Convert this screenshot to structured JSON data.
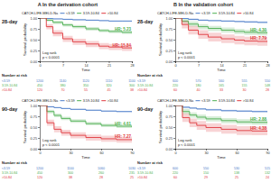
{
  "column_titles": [
    "A In the derivation cohort",
    "B In the validation cohort"
  ],
  "chart_data": [
    {
      "type": "step",
      "title": "28-day",
      "x_label": "Time",
      "y_label": "Survival probability",
      "legend": "top",
      "legend_title": "CATCH-LIFE-MELD-Na",
      "xlim": [
        0,
        28
      ],
      "xticks": [
        0,
        7,
        14,
        21,
        28
      ],
      "ylim": [
        0,
        1
      ],
      "yticks": [
        {
          "value": 0,
          "label": "0.00"
        },
        {
          "value": 0.25,
          "label": "0.25"
        },
        {
          "value": 0.5,
          "label": "0.50"
        },
        {
          "value": 0.75,
          "label": "0.75"
        },
        {
          "value": 1,
          "label": "1.00"
        }
      ],
      "x": [
        0,
        2,
        4,
        7,
        10,
        14,
        18,
        21,
        25,
        28
      ],
      "series": [
        {
          "name": "<3.59",
          "color": "#4a7cc8",
          "values": [
            1,
            0.99,
            0.98,
            0.97,
            0.96,
            0.95,
            0.94,
            0.93,
            0.93,
            0.92
          ],
          "lower": [
            1,
            0.98,
            0.97,
            0.955,
            0.945,
            0.935,
            0.925,
            0.915,
            0.915,
            0.905
          ],
          "upper": [
            1,
            1,
            0.99,
            0.985,
            0.975,
            0.965,
            0.955,
            0.945,
            0.945,
            0.935
          ]
        },
        {
          "name": "3.59-10.84",
          "color": "#4caf50",
          "annotation": "HR: 5.23",
          "values": [
            1,
            0.95,
            0.9,
            0.84,
            0.8,
            0.75,
            0.71,
            0.69,
            0.67,
            0.66
          ],
          "lower": [
            1,
            0.92,
            0.86,
            0.8,
            0.76,
            0.71,
            0.67,
            0.65,
            0.63,
            0.62
          ],
          "upper": [
            1,
            0.98,
            0.94,
            0.88,
            0.84,
            0.79,
            0.75,
            0.73,
            0.71,
            0.7
          ]
        },
        {
          "name": ">10.84",
          "color": "#e0393e",
          "annotation": "HR: 15.84",
          "values": [
            1,
            0.8,
            0.65,
            0.52,
            0.45,
            0.4,
            0.35,
            0.33,
            0.31,
            0.3
          ],
          "lower": [
            1,
            0.74,
            0.58,
            0.45,
            0.38,
            0.33,
            0.28,
            0.26,
            0.24,
            0.23
          ],
          "upper": [
            1,
            0.86,
            0.72,
            0.59,
            0.52,
            0.47,
            0.42,
            0.4,
            0.38,
            0.37
          ]
        }
      ],
      "annotations": [
        "Log rank",
        "p < 0.0001"
      ],
      "risk_table": {
        "title": "Number at risk",
        "rows": [
          [
            1200,
            1140,
            1120,
            1110,
            1100
          ],
          [
            450,
            380,
            350,
            320,
            300
          ],
          [
            120,
            70,
            55,
            45,
            38
          ]
        ]
      }
    },
    {
      "type": "step",
      "title": "28-day",
      "x_label": "Time",
      "y_label": "Survival probability",
      "legend": "top",
      "legend_title": "CATCH-LIFE-MELD-Na",
      "xlim": [
        0,
        28
      ],
      "xticks": [
        0,
        7,
        14,
        21,
        28
      ],
      "ylim": [
        0,
        1
      ],
      "yticks": [
        {
          "value": 0,
          "label": "0.00"
        },
        {
          "value": 0.25,
          "label": "0.25"
        },
        {
          "value": 0.5,
          "label": "0.50"
        },
        {
          "value": 0.75,
          "label": "0.75"
        },
        {
          "value": 1,
          "label": "1.00"
        }
      ],
      "x": [
        0,
        2,
        4,
        7,
        10,
        14,
        18,
        21,
        25,
        28
      ],
      "series": [
        {
          "name": "<3.59",
          "color": "#4a7cc8",
          "values": [
            1,
            0.99,
            0.97,
            0.95,
            0.94,
            0.93,
            0.92,
            0.91,
            0.9,
            0.9
          ],
          "lower": [
            1,
            0.98,
            0.95,
            0.93,
            0.92,
            0.91,
            0.9,
            0.89,
            0.88,
            0.88
          ],
          "upper": [
            1,
            1,
            0.99,
            0.97,
            0.96,
            0.95,
            0.94,
            0.93,
            0.92,
            0.92
          ]
        },
        {
          "name": "3.59-10.84",
          "color": "#4caf50",
          "annotation": "HR: 4.30",
          "values": [
            1,
            0.93,
            0.86,
            0.8,
            0.76,
            0.72,
            0.69,
            0.67,
            0.66,
            0.65
          ],
          "lower": [
            1,
            0.88,
            0.8,
            0.74,
            0.7,
            0.66,
            0.63,
            0.61,
            0.6,
            0.59
          ],
          "upper": [
            1,
            0.98,
            0.92,
            0.86,
            0.82,
            0.78,
            0.75,
            0.73,
            0.72,
            0.71
          ]
        },
        {
          "name": ">10.84",
          "color": "#e0393e",
          "annotation": "HR: 7.79",
          "values": [
            1,
            0.85,
            0.72,
            0.62,
            0.56,
            0.52,
            0.49,
            0.47,
            0.46,
            0.45
          ],
          "lower": [
            1,
            0.76,
            0.62,
            0.52,
            0.46,
            0.42,
            0.39,
            0.37,
            0.36,
            0.35
          ],
          "upper": [
            1,
            0.94,
            0.82,
            0.72,
            0.66,
            0.62,
            0.59,
            0.57,
            0.56,
            0.55
          ]
        }
      ],
      "annotations": [
        "Log rank",
        "p < 0.0001"
      ],
      "risk_table": {
        "title": "Number at risk",
        "rows": [
          [
            600,
            570,
            560,
            555,
            550
          ],
          [
            220,
            180,
            165,
            155,
            148
          ],
          [
            60,
            40,
            33,
            30,
            28
          ]
        ]
      }
    },
    {
      "type": "step",
      "title": "90-day",
      "x_label": "Time",
      "y_label": "Survival probability",
      "legend": "top",
      "legend_title": "CATCH-LIFE-MELD-Na",
      "xlim": [
        0,
        90
      ],
      "xticks": [
        0,
        30,
        60,
        90
      ],
      "ylim": [
        0,
        1
      ],
      "yticks": [
        {
          "value": 0,
          "label": "0.00"
        },
        {
          "value": 0.25,
          "label": "0.25"
        },
        {
          "value": 0.5,
          "label": "0.50"
        },
        {
          "value": 0.75,
          "label": "0.75"
        },
        {
          "value": 1,
          "label": "1.00"
        }
      ],
      "x": [
        0,
        7,
        14,
        21,
        30,
        45,
        60,
        75,
        90
      ],
      "series": [
        {
          "name": "<3.59",
          "color": "#4a7cc8",
          "values": [
            1,
            0.97,
            0.95,
            0.93,
            0.91,
            0.89,
            0.87,
            0.86,
            0.85
          ],
          "lower": [
            1,
            0.955,
            0.935,
            0.915,
            0.895,
            0.875,
            0.855,
            0.845,
            0.835
          ],
          "upper": [
            1,
            0.985,
            0.965,
            0.945,
            0.925,
            0.905,
            0.885,
            0.875,
            0.865
          ]
        },
        {
          "name": "3.59-10.84",
          "color": "#4caf50",
          "annotation": "HR: 4.61",
          "values": [
            1,
            0.86,
            0.77,
            0.7,
            0.64,
            0.58,
            0.54,
            0.52,
            0.5
          ],
          "lower": [
            1,
            0.82,
            0.73,
            0.66,
            0.6,
            0.54,
            0.5,
            0.48,
            0.46
          ],
          "upper": [
            1,
            0.9,
            0.81,
            0.74,
            0.68,
            0.62,
            0.58,
            0.56,
            0.54
          ]
        },
        {
          "name": ">10.84",
          "color": "#e0393e",
          "annotation": "HR: 7.27",
          "values": [
            1,
            0.6,
            0.45,
            0.37,
            0.31,
            0.26,
            0.23,
            0.21,
            0.2
          ],
          "lower": [
            1,
            0.53,
            0.38,
            0.3,
            0.24,
            0.19,
            0.16,
            0.14,
            0.13
          ],
          "upper": [
            1,
            0.67,
            0.52,
            0.44,
            0.38,
            0.33,
            0.3,
            0.28,
            0.27
          ]
        }
      ],
      "annotations": [
        "Log rank",
        "p < 0.0001"
      ],
      "risk_table": {
        "title": "Number at risk",
        "rows": [
          [
            1200,
            1100,
            1060,
            1030
          ],
          [
            450,
            300,
            260,
            235
          ],
          [
            120,
            38,
            28,
            25
          ]
        ]
      }
    },
    {
      "type": "step",
      "title": "90-day",
      "x_label": "Time",
      "y_label": "Survival probability",
      "legend": "top",
      "legend_title": "CATCH-LIFE-MELD-Na",
      "xlim": [
        0,
        90
      ],
      "xticks": [
        0,
        30,
        60,
        90
      ],
      "ylim": [
        0,
        1
      ],
      "yticks": [
        {
          "value": 0,
          "label": "0.00"
        },
        {
          "value": 0.25,
          "label": "0.25"
        },
        {
          "value": 0.5,
          "label": "0.50"
        },
        {
          "value": 0.75,
          "label": "0.75"
        },
        {
          "value": 1,
          "label": "1.00"
        }
      ],
      "x": [
        0,
        7,
        14,
        21,
        30,
        45,
        60,
        75,
        90
      ],
      "series": [
        {
          "name": "<3.59",
          "color": "#4a7cc8",
          "values": [
            1,
            0.96,
            0.94,
            0.92,
            0.9,
            0.88,
            0.87,
            0.86,
            0.85
          ],
          "lower": [
            1,
            0.94,
            0.92,
            0.9,
            0.88,
            0.86,
            0.85,
            0.84,
            0.83
          ],
          "upper": [
            1,
            0.98,
            0.96,
            0.94,
            0.92,
            0.9,
            0.89,
            0.88,
            0.87
          ]
        },
        {
          "name": "3.59-10.84",
          "color": "#4caf50",
          "annotation": "HR: 2.88",
          "values": [
            1,
            0.86,
            0.78,
            0.73,
            0.69,
            0.65,
            0.62,
            0.61,
            0.6
          ],
          "lower": [
            1,
            0.8,
            0.72,
            0.67,
            0.63,
            0.59,
            0.56,
            0.55,
            0.54
          ],
          "upper": [
            1,
            0.92,
            0.84,
            0.79,
            0.75,
            0.71,
            0.68,
            0.67,
            0.66
          ]
        },
        {
          "name": ">10.84",
          "color": "#e0393e",
          "annotation": "HR: 4.38",
          "values": [
            1,
            0.72,
            0.6,
            0.54,
            0.49,
            0.45,
            0.42,
            0.41,
            0.4
          ],
          "lower": [
            1,
            0.62,
            0.5,
            0.44,
            0.39,
            0.35,
            0.32,
            0.31,
            0.3
          ],
          "upper": [
            1,
            0.82,
            0.7,
            0.64,
            0.59,
            0.55,
            0.52,
            0.51,
            0.5
          ]
        }
      ],
      "annotations": [
        "Log rank",
        "p < 0.0001"
      ],
      "risk_table": {
        "title": "Number at risk",
        "rows": [
          [
            600,
            550,
            530,
            515
          ],
          [
            220,
            150,
            138,
            132
          ],
          [
            60,
            29,
            25,
            24
          ]
        ]
      }
    }
  ]
}
